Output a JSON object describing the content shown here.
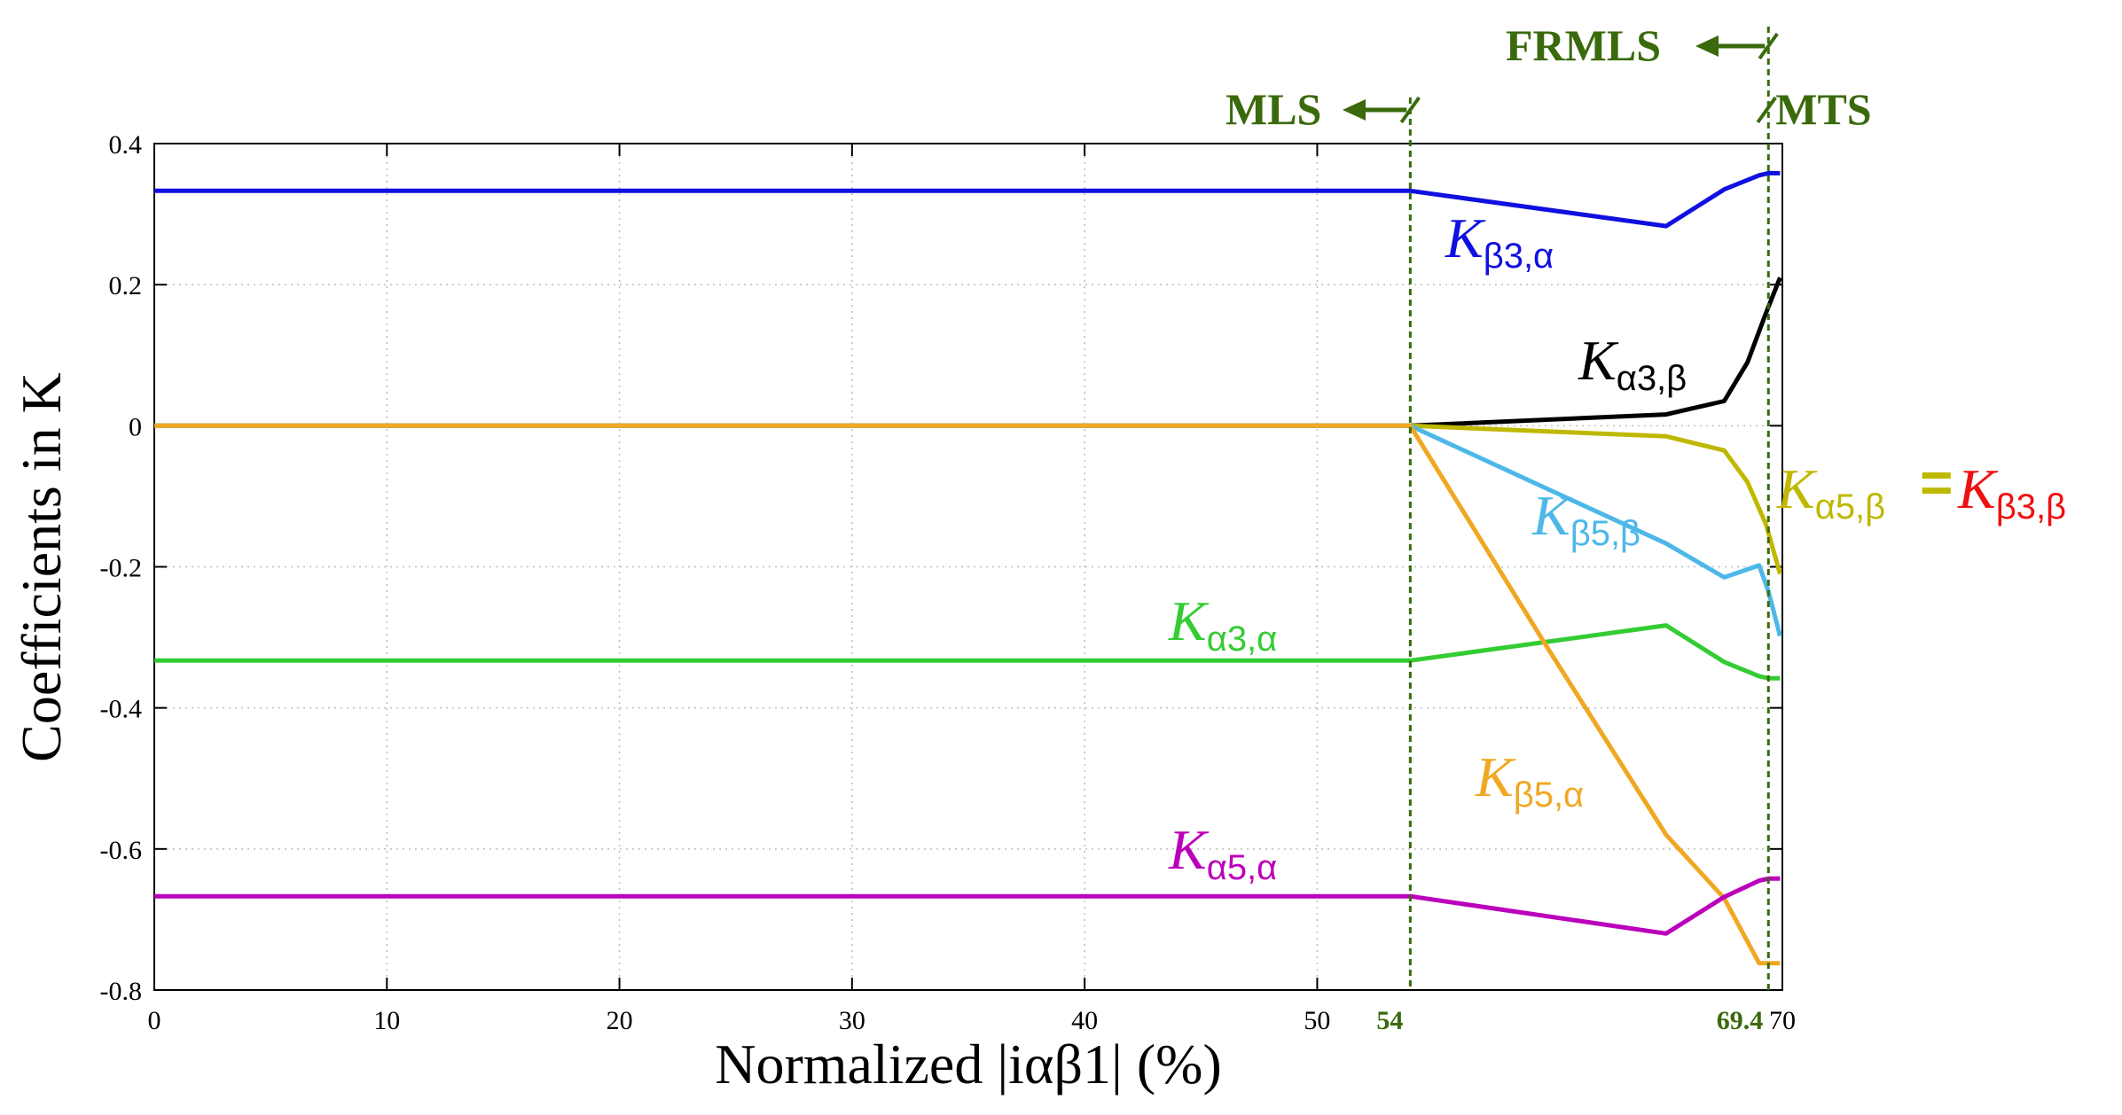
{
  "chart_data": {
    "type": "line",
    "xlabel": "Normalized |iαβ1| (%)",
    "ylabel": "Coefficients in K",
    "xlim": [
      0,
      70
    ],
    "ylim": [
      -0.8,
      0.4
    ],
    "grid": true,
    "x_ticks": [
      "0",
      "10",
      "20",
      "30",
      "40",
      "50",
      "70"
    ],
    "y_ticks": [
      "0.4",
      "0.2",
      "0",
      "-0.2",
      "-0.4",
      "-0.6",
      "-0.8"
    ],
    "markers": [
      {
        "x": 54,
        "label": "54",
        "region_label": "MLS"
      },
      {
        "x": 69.4,
        "label": "69.4",
        "region_label": "FRMLS",
        "right_region_label": "MTS"
      }
    ],
    "series": [
      {
        "name": "Kβ3,α",
        "base": "K",
        "sub": "β3,α",
        "color": "#1010e0",
        "x": [
          0,
          54,
          65,
          67.5,
          69,
          69.4,
          69.9
        ],
        "values": [
          0.333,
          0.333,
          0.283,
          0.335,
          0.355,
          0.358,
          0.358
        ]
      },
      {
        "name": "Kα3,β",
        "base": "K",
        "sub": "α3,β",
        "color": "#000000",
        "x": [
          0,
          54,
          65,
          67.5,
          68.5,
          69.3,
          69.9
        ],
        "values": [
          0,
          0,
          0.016,
          0.035,
          0.09,
          0.16,
          0.21
        ]
      },
      {
        "name": "Kα5,β",
        "base": "K",
        "sub": "α5,β",
        "color": "#bfb800",
        "x": [
          0,
          54,
          65,
          67.5,
          68.5,
          69.3,
          69.9
        ],
        "values": [
          0,
          0,
          -0.015,
          -0.035,
          -0.08,
          -0.14,
          -0.21
        ]
      },
      {
        "name": "Kβ5,β",
        "base": "K",
        "sub": "β5,β",
        "color": "#4db8e8",
        "x": [
          0,
          54,
          65,
          67.5,
          69,
          69.4,
          69.9
        ],
        "values": [
          0,
          0,
          -0.167,
          -0.215,
          -0.198,
          -0.235,
          -0.298
        ]
      },
      {
        "name": "Kα3,α",
        "base": "K",
        "sub": "α3,α",
        "color": "#33cc33",
        "x": [
          0,
          54,
          65,
          67.5,
          69,
          69.4,
          69.9
        ],
        "values": [
          -0.333,
          -0.333,
          -0.283,
          -0.335,
          -0.355,
          -0.358,
          -0.358
        ]
      },
      {
        "name": "Kβ5,α",
        "base": "K",
        "sub": "β5,α",
        "color": "#f0a823",
        "x": [
          0,
          54,
          60,
          65,
          67.5,
          69,
          69.4,
          69.9
        ],
        "values": [
          0,
          0,
          -0.32,
          -0.58,
          -0.67,
          -0.762,
          -0.762,
          -0.762
        ]
      },
      {
        "name": "Kα5,α",
        "base": "K",
        "sub": "α5,α",
        "color": "#bb00bb",
        "x": [
          0,
          54,
          65,
          67.5,
          69,
          69.4,
          69.9
        ],
        "values": [
          -0.667,
          -0.667,
          -0.72,
          -0.668,
          -0.645,
          -0.642,
          -0.642
        ]
      }
    ],
    "annotations": [
      {
        "base": "K",
        "sub": "β3,β",
        "color": "#ee1111",
        "text": "= Kβ3,β",
        "equals": "="
      }
    ]
  }
}
